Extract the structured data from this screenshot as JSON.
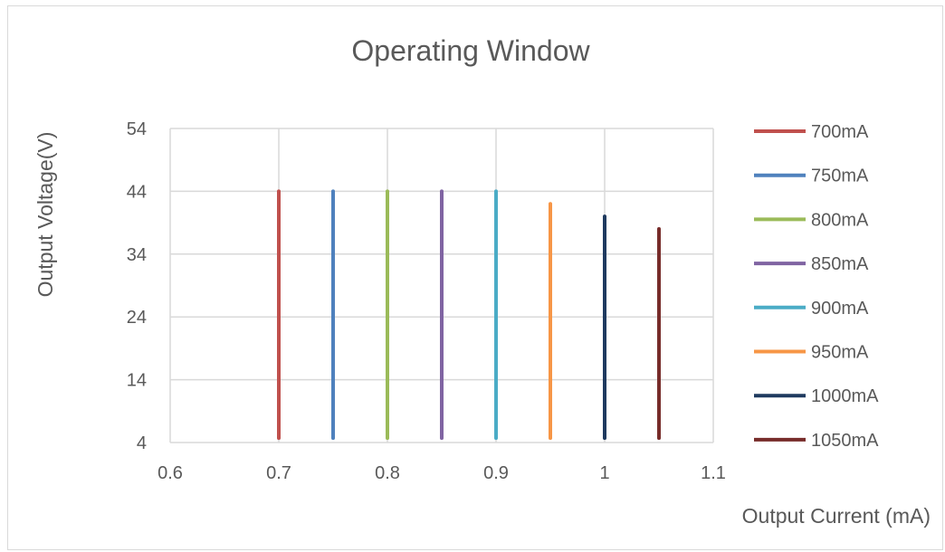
{
  "chart_data": {
    "type": "line",
    "title": "Operating Window",
    "xlabel": "Output Current (mA)",
    "ylabel": "Output Voltage(V)",
    "xlim": [
      0.6,
      1.1
    ],
    "ylim": [
      4,
      54
    ],
    "xticks": [
      "0.6",
      "0.7",
      "0.8",
      "0.9",
      "1",
      "1.1"
    ],
    "yticks": [
      "4",
      "14",
      "24",
      "34",
      "44",
      "54"
    ],
    "grid": true,
    "legend_position": "right",
    "series": [
      {
        "name": "700mA",
        "color": "#c0504d",
        "x": [
          0.7,
          0.7
        ],
        "y": [
          4.7,
          44
        ]
      },
      {
        "name": "750mA",
        "color": "#4f81bd",
        "x": [
          0.75,
          0.75
        ],
        "y": [
          4.7,
          44
        ]
      },
      {
        "name": "800mA",
        "color": "#9bbb59",
        "x": [
          0.8,
          0.8
        ],
        "y": [
          4.7,
          44
        ]
      },
      {
        "name": "850mA",
        "color": "#8064a2",
        "x": [
          0.85,
          0.85
        ],
        "y": [
          4.7,
          44
        ]
      },
      {
        "name": "900mA",
        "color": "#4bacc6",
        "x": [
          0.9,
          0.9
        ],
        "y": [
          4.7,
          44
        ]
      },
      {
        "name": "950mA",
        "color": "#f79646",
        "x": [
          0.95,
          0.95
        ],
        "y": [
          4.7,
          42
        ]
      },
      {
        "name": "1000mA",
        "color": "#1f3a5f",
        "x": [
          1.0,
          1.0
        ],
        "y": [
          4.7,
          40
        ]
      },
      {
        "name": "1050mA",
        "color": "#772c2a",
        "x": [
          1.05,
          1.05
        ],
        "y": [
          4.7,
          38
        ]
      }
    ]
  }
}
